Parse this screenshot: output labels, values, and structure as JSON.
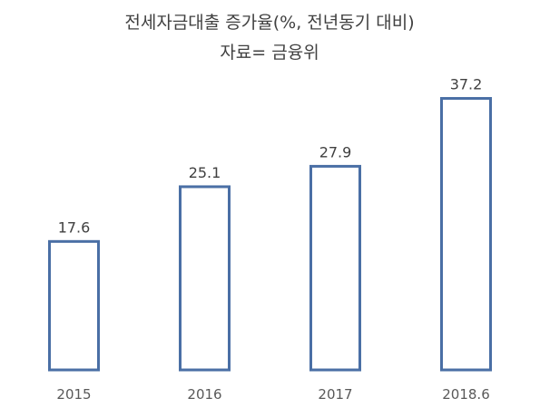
{
  "chart_data": {
    "type": "bar",
    "title": "전세자금대출 증가율(%, 전년동기 대비)",
    "subtitle": "자료= 금융위",
    "categories": [
      "2015",
      "2016",
      "2017",
      "2018.6"
    ],
    "values": [
      17.6,
      25.1,
      27.9,
      37.2
    ],
    "xlabel": "",
    "ylabel": "",
    "ylim": [
      0,
      40
    ],
    "grid": false,
    "legend": "none",
    "colors": {
      "bar_stroke": "#4a6fa5",
      "bar_fill": "#ffffff",
      "text": "#404040"
    }
  }
}
